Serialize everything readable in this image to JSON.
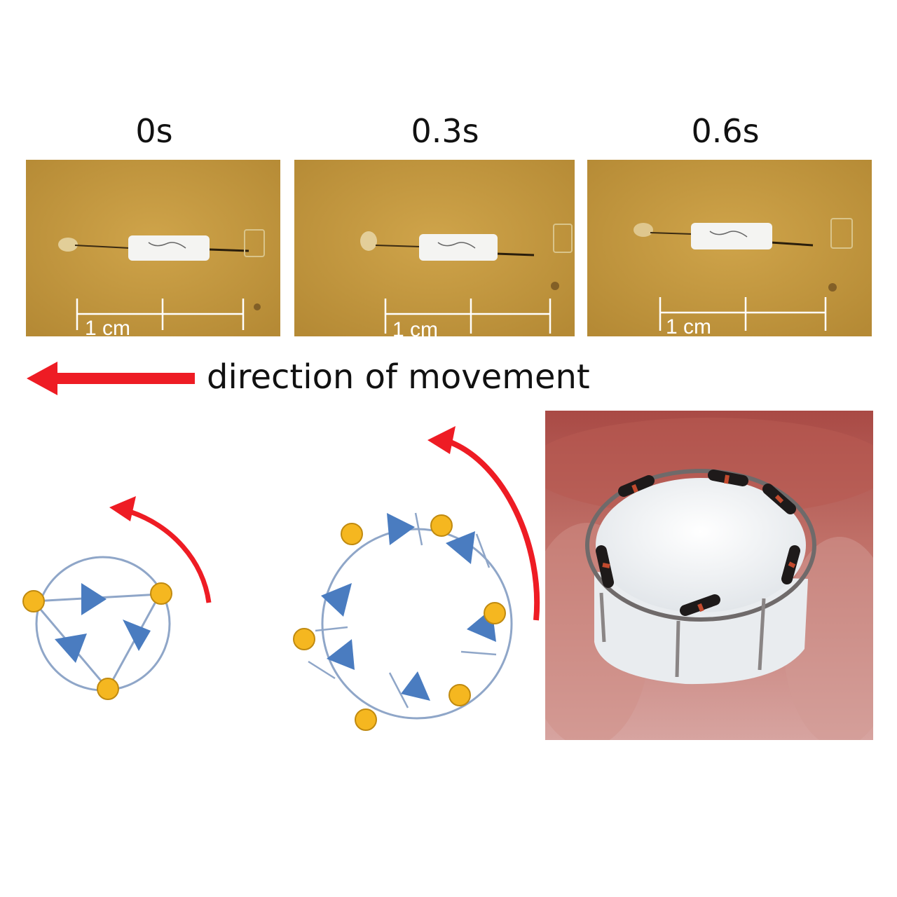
{
  "frames": [
    {
      "time_label": "0s",
      "scale_label": "1 cm"
    },
    {
      "time_label": "0.3s",
      "scale_label": "1 cm"
    },
    {
      "time_label": "0.6s",
      "scale_label": "1 cm"
    }
  ],
  "direction_label": "direction of movement",
  "colors": {
    "arrow": "#ee1c24",
    "node": "#f5b720",
    "diode": "#4a7cc0",
    "ring": "#8fa6c8",
    "frame_bg": "#c49a3d"
  },
  "icons": [
    "red-left-arrow-icon",
    "curved-rotation-arrow-icon",
    "diode-icon",
    "node-dot-icon"
  ]
}
